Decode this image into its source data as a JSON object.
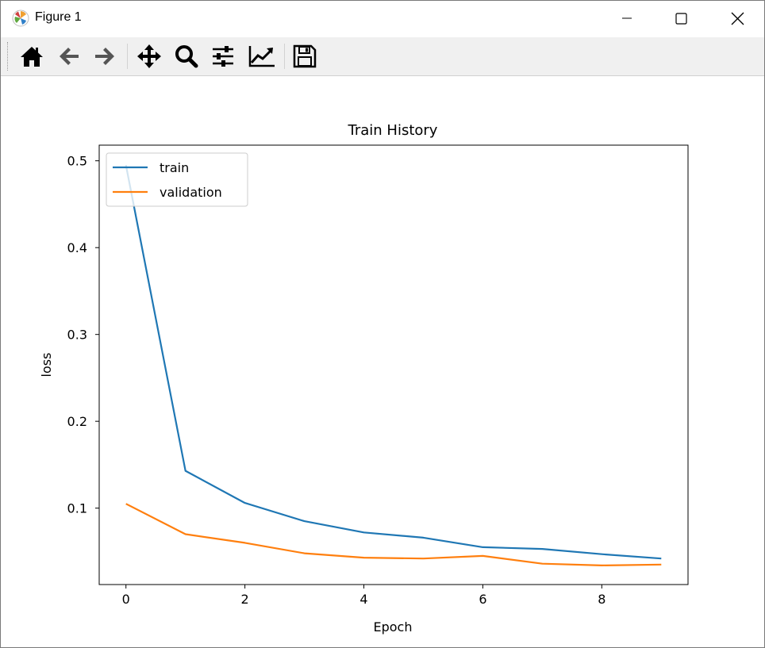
{
  "window": {
    "title": "Figure 1",
    "icon": "matplotlib-icon",
    "controls": [
      "minimize-icon",
      "maximize-icon",
      "close-icon"
    ]
  },
  "toolbar": {
    "buttons": [
      "home-icon",
      "back-arrow-icon",
      "forward-arrow-icon",
      "pan-icon",
      "zoom-icon",
      "subplots-config-icon",
      "edit-axis-icon",
      "save-icon"
    ]
  },
  "colors": {
    "train": "#1f77b4",
    "validation": "#ff7f0e"
  },
  "chart_data": {
    "type": "line",
    "title": "Train History",
    "xlabel": "Epoch",
    "ylabel": "loss",
    "x": [
      0,
      1,
      2,
      3,
      4,
      5,
      6,
      7,
      8,
      9
    ],
    "series": [
      {
        "name": "train",
        "values": [
          0.495,
          0.143,
          0.106,
          0.085,
          0.072,
          0.066,
          0.055,
          0.053,
          0.047,
          0.042
        ]
      },
      {
        "name": "validation",
        "values": [
          0.105,
          0.07,
          0.06,
          0.048,
          0.043,
          0.042,
          0.045,
          0.036,
          0.034,
          0.035
        ]
      }
    ],
    "xlim": [
      -0.45,
      9.45
    ],
    "ylim": [
      0.012,
      0.518
    ],
    "xticks": [
      "0",
      "2",
      "4",
      "6",
      "8"
    ],
    "yticks": [
      "0.1",
      "0.2",
      "0.3",
      "0.4",
      "0.5"
    ],
    "legend_position": "upper-left",
    "grid": false
  }
}
